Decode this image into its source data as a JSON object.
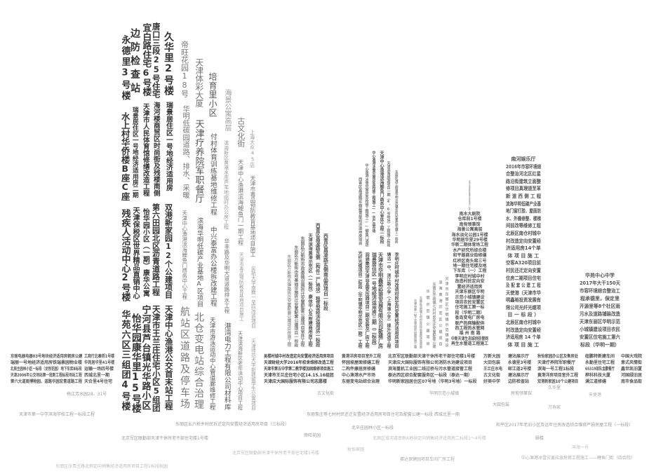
{
  "vertical_labels": [
    "永德里3号楼",
    "水上村华侨楼B座C座",
    "残疾人活动中心2号楼",
    "华苑六区三组团4号楼",
    "边防检查站",
    "瑞景居住区一号地经济适用房二期",
    "天津保税区世界精品直销中心",
    "怡华园康华里15号楼",
    "宜白路住宅6号楼",
    "天津市人民体育馆修缮改造工程",
    "怡华园小区（一期）康华公寓",
    "宁河县芦台镇光华路小区",
    "唐口三段25号住宅",
    "海河楼商贸区时尚街及残楼南侧",
    "第六田园北区沥青道路工程",
    "天津市王兰庄住宅小区5组团",
    "久华里2号楼",
    "瑞景居住区一号地经济适用房",
    "双港新家园12个公建项目",
    "天津中心渔港公交首末站工程",
    "帝旺花园18号",
    "华明低碳园道路、排水、采暖",
    "天津中心渔港滨海鲤鱼门商务中心工程",
    "航站区道路及停车场",
    "天津体彩大厦",
    "天津疗养院军职餐厅",
    "滨海华明低碳产业基地A区项目",
    "北仓变电站综合治理",
    "培育里小区",
    "付村体育训练基地维修工程",
    "中兴泰富办公楼拆改建工程",
    "天津市游泳运动中心管道廊维修工程",
    "海景公寓高层",
    "滨海新区黄港水库芦苇地临时办公房工程",
    "华丰路及华明大道道路排水工程",
    "港湾电力工程有限公司材料库",
    "古文化街",
    "天津中心渔港滨海鲤鱼门一期工程",
    "天津市毒品预防教育基地项目施工",
    "天津滨海新区老年活动中心项目工程",
    "上海大众45店",
    "天津市毒品预防教育基地项目施工",
    "民航大学南教一至四改造项目",
    "天津师范大学新建留学生公寓项目",
    "东丽区万新街先锋路拆迁安置配套公建项目改造工程",
    "东丽区万新街市政基础设施拆迁安置配套公建项目一标段",
    "东丽区万新街市政基础设施拆迁安置配套公建项目室外工程",
    "天津滨海黄港示范区（一标段）康体中心及附建商用房工程",
    "西青区昌凌路东侧（构件二厂地块）租赁型经济适用房一标段",
    "西青区昌凌路东侧商品房项目一标段",
    "西青区昌凌路东侧租赁型经济适用房项目",
    "光纤光缆项目二标段（华明镇华明示范区一期）工程",
    "中心渔港冰雪灾害应急抢修工程施工——鲤鱼门酒店",
    "润涵集团天津非晶变压器项目二期安装及厂房工程",
    "中心渔港冰雪灾害应急抢修工程施工——水产品市场",
    "瑞景居住区一号地经济适用房三期（二标段）",
    "天津中心渔港滨海鲤鱼门商务中心室外工程一标段",
    "天津市华明鑫裕投资发展有限公司新建厂房",
    "天津滨海旅游项目一期（4、6号地块）工程施工标段",
    "塘沽一中、滨江路小学（上海道小学）提升改造工程",
    "东丽区滨江街道华明示范镇农民安置住宅施工一标段",
    "李明庄村城中村改造村民定向安置经济适用房项目",
    "天津市第一轻工业学校实训楼改造工程",
    "东丽区华明镇七村村民还迁安置经济适用房",
    "华明示范镇公建项目",
    "东丽区华明镇七村村民还迁安置配套公建",
    "滨海黄港示范区公建项目",
    "天津市东丽区华明镇示范镇建设",
    "天津市滨海新区黄港生态区项目一标段"
  ],
  "text_blocks": [
    [
      "东丽电器电器03号地块经济适用房朝房公建",
      "瑞丽一号地经济适用房铁瑞景园物业楼",
      "北辰主园林小区一标段（龙悦花园）地下车库B标段",
      "天津2006年公交场站第一批新工程标段场站工程",
      "第六大道周博物园、道路华园宏青道路工程"
    ],
    [
      "工商行北秦郊1号楼",
      "华苑居华里41号楼",
      "运输一场四号楼",
      "西城北里一期",
      "天合里4号住宅"
    ],
    [
      "吴楼村城中村改造定向安置经济适用房项目",
      "天津财经大学2016年校舍维修改造工程",
      "天津市第五中学第二教学楼加固维修项目施工",
      "天津市王兰庄住宅小区14.15.16组团",
      "天津应大国际服饰有限公司志愿楼"
    ],
    [
      "黄港洋房项目室外工程",
      "怀园坡屋面修缮工程",
      "二构件康居房修缮",
      "中心渔港水产市场",
      "东丽变电站综合治理"
    ],
    [
      "北京军区联勤部天津干休所老干部住宅楼1号楼",
      "天津应大国际服饰有限公司消防水池建设项目",
      "滨海重机工业园二线过桥与污水管道接管工程",
      "泰达西区综合配套服务区一标段（泰达一期）",
      "华明新家园居住区07号地（华明3号地）一标段"
    ],
    [
      "万新大园",
      "大田包装",
      "王兰庄水电",
      "古文化街",
      "好美中学"
    ],
    [
      "塘沽展示厅",
      "永德里3号楼",
      "邮江道2号楼",
      "塘沽展示厅",
      "边防检查站"
    ],
    [
      "秋怡家园办公区及售房处",
      "天津疗养院军职餐厅",
      "滨海一号工程1标段",
      "黄港洋房项目室外工程",
      "双港新家园10个公建项目"
    ],
    [
      "纽鹏特新建车间",
      "永勤里住宅工程",
      "65319部队金鹏餐厅",
      "桦科科技大厦",
      "满江道修缮"
    ],
    [
      "中国大戏院",
      "意式风情街",
      "鑫世凯旧厦",
      "河国绿旧居",
      "南市食品街"
    ],
    [
      "南河娱乐厅",
      "2016年市容环境综",
      "合整治河北区红星",
      "路沿街建筑立面整",
      "修项目真理道至革",
      "新 道 西 侧 工 程",
      "滨海华明低碳产业基",
      "地门窗打胶、屋面防",
      "水、外檐修整、楼梯",
      "间前改等维修工程",
      "北辰区南仓村城中",
      "村改造定向安置经",
      "济适用房14个单",
      "体 项 目 施 工",
      "空客A320项目前",
      "村民还迁定向安置",
      "住房二期项目住宅",
      "及 配 套 公 建 工 程",
      "天使港（天津市华",
      "明鑫裕投资发展有",
      "限公司光纤光缆项",
      "目 一 标 段 ）",
      "北辰区南仓村城中",
      "村改造定向安置经",
      "济适用房 14 个单",
      "体 项 目 施 工"
    ],
    [
      "南木大剧院",
      "仓库前1号楼",
      "南甸领事馆",
      "海景公寓高层",
      "海水淡化公园1号楼",
      "华明居华里29号楼",
      "华新二期体育场工程",
      "水产研究所综合楼",
      "和平路商业街修缮",
      "红桥区南头窑三号",
      "地一期住宅楼及地",
      "下车库（一）工程",
      "李明庄村城中村",
      "改造村民定向安",
      "置经济适用房",
      "天津东丽区华明",
      "示范小城镇建设",
      "项目农民安置区",
      "住宅施工第一标",
      "段（华明二期）",
      "香岛变电厂房电",
      "联产热网输配供",
      "热工程热水管网",
      "福 州 南 路",
      "中新天津生态城供热管网",
      "再生水管道工程施工"
    ],
    [
      "华苑中心中学",
      "2017年大干150天",
      "市容环境综合整治工",
      "程承德里，保定里",
      "开源里等8个社区雨",
      "污水及道路铺装改造",
      "天津东丽区华明示范",
      "小城镇建设项目农民",
      "安置区住宅施工第六",
      "标段（华明一期）"
    ]
  ],
  "scattered_labels": [
    "梅江芳水园28、31号",
    "天津市第一中学滨海学校工程一标段工程",
    "古文化街",
    "华明示范小城镇",
    "房甸领事馆",
    "久华里",
    "天使港",
    "大田包装",
    "万寿家",
    "东丽区幺六桥乡村民拆迁定向安置经济适用房项目（三标段）",
    "东丽詹庄等七村村民还迁安置经济适用房项目住宅及配套公建一标段 西城北里一期",
    "帝旺花园",
    "北京军区联勤部天津干休所老干部住宅楼1号楼",
    "北辛庄园林小区一标段",
    "和平区2017年老旧小区及远年住房改造综合维修严损房屋工程（一标段）",
    "北京军区联勤部天津干休所老干部住宅楼1号楼",
    "北辰区淮河道南侧A地块定向销售经济适用房二标段1～4号楼",
    "颐楼",
    "滨海一号",
    "秋怡家园",
    "赛达保健园项目车间厂房工程",
    "中心渔港冰雪灾害应急抢修工程施工——鲤鱼门街（四合院）",
    "东丽区张贵庄路北侧定向销售经济适用房项目工程1标段秋园"
  ]
}
